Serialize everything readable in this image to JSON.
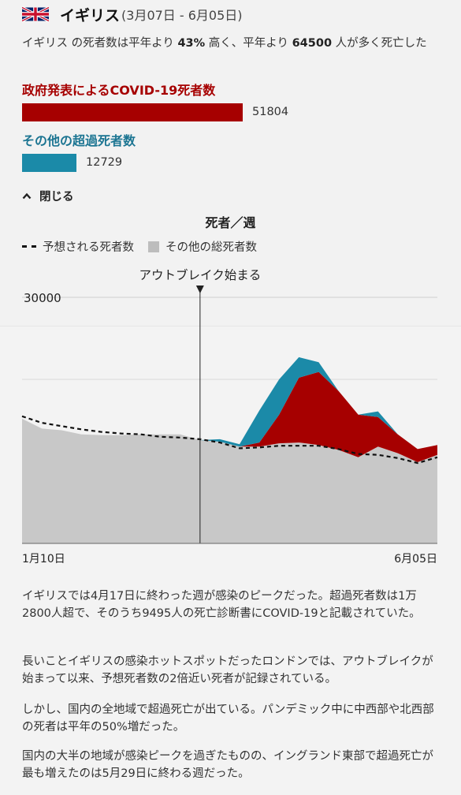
{
  "header": {
    "country": "イギリス",
    "date_range": "(3月07日 - 6月05日)",
    "summary_pre": "イギリス の死者数は平年より ",
    "summary_pct": "43%",
    "summary_mid": " 高く、平年より ",
    "summary_num": "64500",
    "summary_post": " 人が多く死亡した"
  },
  "bars": {
    "covid_label": "政府発表によるCOVID-19死者数",
    "covid_value": "51804",
    "excess_label": "その他の超過死者数",
    "excess_value": "12729"
  },
  "close_label": "閉じる",
  "legend": {
    "expected": "予想される死者数",
    "other": "その他の総死者数"
  },
  "colors": {
    "covid": "#a60000",
    "excess": "#1b8aa8",
    "baseline": "#c8c8c8"
  },
  "chart_data": {
    "type": "area",
    "title": "死者／週",
    "ytick": "30000",
    "ytick_value": 30000,
    "ylim": [
      0,
      32000
    ],
    "annotation": "アウトブレイク始まる",
    "annotation_week": 9,
    "x_start_label": "1月10日",
    "x_end_label": "6月05日",
    "weeks": 22,
    "expected": [
      15500,
      14700,
      14300,
      13900,
      13600,
      13400,
      13300,
      13000,
      12900,
      12700,
      12300,
      11600,
      11700,
      11900,
      11900,
      11900,
      11500,
      10900,
      10800,
      10400,
      9800,
      10500
    ],
    "other": [
      15200,
      14000,
      13800,
      13300,
      13200,
      13200,
      13300,
      13300,
      13300,
      12600,
      12400,
      11800,
      11800,
      12200,
      12300,
      12000,
      11400,
      10500,
      11800,
      11000,
      9900,
      10800
    ],
    "covid": [
      0,
      0,
      0,
      0,
      0,
      0,
      0,
      0,
      0,
      0,
      0,
      0,
      500,
      3500,
      7900,
      8900,
      7200,
      5200,
      3600,
      2300,
      1600,
      1200
    ],
    "excess": [
      0,
      0,
      0,
      0,
      0,
      0,
      0,
      0,
      0,
      0,
      300,
      300,
      3900,
      4300,
      2500,
      1200,
      0,
      0,
      700,
      0,
      0,
      0
    ]
  },
  "paragraphs": [
    "イギリスでは4月17日に終わった週が感染のピークだった。超過死者数は1万2800人超で、そのうち9495人の死亡診断書にCOVID-19と記載されていた。",
    "長いことイギリスの感染ホットスポットだったロンドンでは、アウトブレイクが始まって以来、予想死者数の2倍近い死者が記録されている。",
    "しかし、国内の全地域で超過死亡が出ている。パンデミック中に中西部や北西部の死者は平年の50%増だった。",
    "国内の大半の地域が感染ピークを過ぎたものの、イングランド東部で超過死亡が最も増えたのは5月29日に終わる週だった。"
  ]
}
